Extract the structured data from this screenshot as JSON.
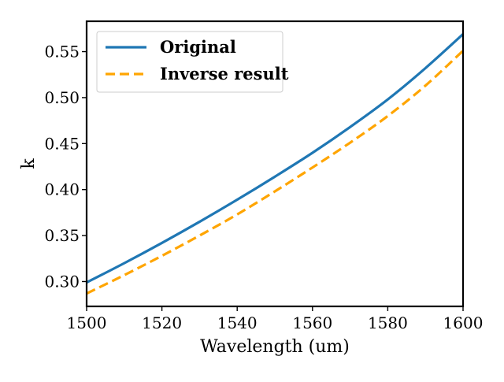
{
  "chart_data": {
    "type": "line",
    "title": "",
    "xlabel": "Wavelength (um)",
    "ylabel": "k",
    "xlim": [
      1500,
      1600
    ],
    "ylim": [
      0.273,
      0.583
    ],
    "xticks": [
      1500,
      1520,
      1540,
      1560,
      1580,
      1600
    ],
    "xtick_labels": [
      "1500",
      "1520",
      "1540",
      "1560",
      "1580",
      "1600"
    ],
    "yticks": [
      0.3,
      0.35,
      0.4,
      0.45,
      0.5,
      0.55
    ],
    "ytick_labels": [
      "0.30",
      "0.35",
      "0.40",
      "0.45",
      "0.50",
      "0.55"
    ],
    "grid": false,
    "legend_position": "top-left",
    "x": [
      1500,
      1510,
      1520,
      1530,
      1540,
      1550,
      1560,
      1570,
      1580,
      1590,
      1600
    ],
    "series": [
      {
        "name": "Original",
        "color": "#1f77b4",
        "style": "solid",
        "values": [
          0.299,
          0.32,
          0.342,
          0.365,
          0.389,
          0.414,
          0.44,
          0.468,
          0.498,
          0.532,
          0.569
        ]
      },
      {
        "name": "Inverse result",
        "color": "#ffa500",
        "style": "dashed",
        "values": [
          0.287,
          0.307,
          0.328,
          0.35,
          0.373,
          0.398,
          0.424,
          0.451,
          0.48,
          0.513,
          0.551
        ]
      }
    ]
  }
}
